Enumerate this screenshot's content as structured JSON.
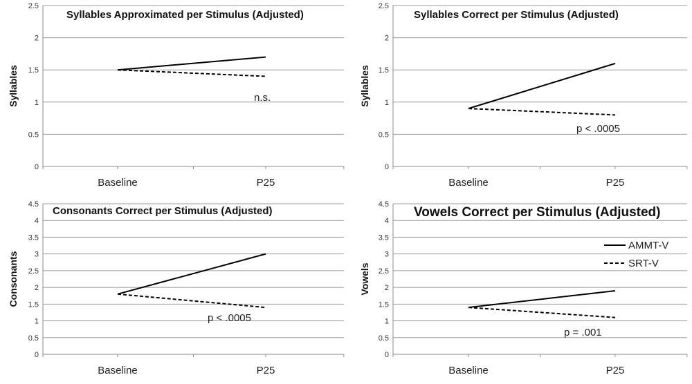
{
  "chart_data": [
    {
      "type": "line",
      "title": "Syllables Approximated per Stimulus (Adjusted)",
      "ylabel": "Syllables",
      "xlabel": "",
      "categories": [
        "Baseline",
        "P25"
      ],
      "ylim": [
        0,
        2.5
      ],
      "yticks": [
        "0",
        "0.5",
        "1",
        "1.5",
        "2",
        "2.5"
      ],
      "grid": true,
      "series": [
        {
          "name": "AMMT-V",
          "values": [
            1.5,
            1.7
          ]
        },
        {
          "name": "SRT-V",
          "values": [
            1.5,
            1.4
          ]
        }
      ],
      "annotation": "n.s."
    },
    {
      "type": "line",
      "title": "Syllables Correct per Stimulus (Adjusted)",
      "ylabel": "Syllables",
      "xlabel": "",
      "categories": [
        "Baseline",
        "P25"
      ],
      "ylim": [
        0,
        2.5
      ],
      "yticks": [
        "0",
        "0.5",
        "1",
        "1.5",
        "2",
        "2.5"
      ],
      "grid": true,
      "series": [
        {
          "name": "AMMT-V",
          "values": [
            0.9,
            1.6
          ]
        },
        {
          "name": "SRT-V",
          "values": [
            0.9,
            0.8
          ]
        }
      ],
      "annotation": "p < .0005"
    },
    {
      "type": "line",
      "title": "Consonants Correct per Stimulus (Adjusted)",
      "ylabel": "Consonants",
      "xlabel": "",
      "categories": [
        "Baseline",
        "P25"
      ],
      "ylim": [
        0,
        4.5
      ],
      "yticks": [
        "0",
        "0.5",
        "1",
        "1.5",
        "2",
        "2.5",
        "3",
        "3.5",
        "4",
        "4.5"
      ],
      "grid": true,
      "series": [
        {
          "name": "AMMT-V",
          "values": [
            1.8,
            3.0
          ]
        },
        {
          "name": "SRT-V",
          "values": [
            1.8,
            1.4
          ]
        }
      ],
      "annotation": "p < .0005"
    },
    {
      "type": "line",
      "title": "Vowels Correct per Stimulus (Adjusted)",
      "ylabel": "Vowels",
      "xlabel": "",
      "categories": [
        "Baseline",
        "P25"
      ],
      "ylim": [
        0,
        4.5
      ],
      "yticks": [
        "0",
        "0.5",
        "1",
        "1.5",
        "2",
        "2.5",
        "3",
        "3.5",
        "4",
        "4.5"
      ],
      "grid": true,
      "series": [
        {
          "name": "AMMT-V",
          "values": [
            1.4,
            1.9
          ]
        },
        {
          "name": "SRT-V",
          "values": [
            1.4,
            1.1
          ]
        }
      ],
      "annotation": "p = .001",
      "legend": {
        "position": "right",
        "entries": [
          "AMMT-V",
          "SRT-V"
        ]
      }
    }
  ]
}
